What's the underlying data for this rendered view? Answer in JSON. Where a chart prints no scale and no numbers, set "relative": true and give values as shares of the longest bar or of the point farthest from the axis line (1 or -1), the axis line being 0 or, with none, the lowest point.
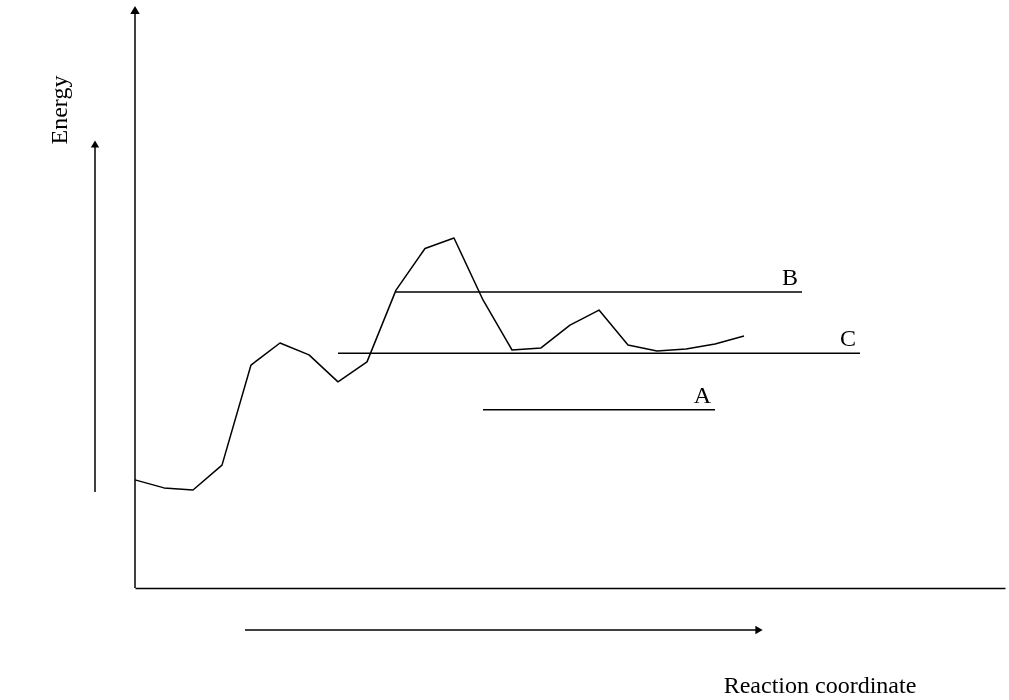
{
  "chart_data": {
    "type": "line",
    "relative": true,
    "xlabel": "Reaction coordinate",
    "ylabel": "Energy",
    "tick_labels": false,
    "grid": false,
    "marker": "none",
    "line_style": "solid",
    "categories": [
      null,
      null,
      null,
      null,
      null,
      null,
      null,
      null,
      null,
      null,
      null,
      null,
      null,
      null,
      null,
      null,
      null,
      null,
      null,
      null,
      null,
      null,
      null,
      null,
      null,
      null,
      null,
      null,
      null,
      null,
      null
    ],
    "series": [
      {
        "color": "#000000",
        "values": [
          0.309,
          0.286,
          0.28,
          0.351,
          0.637,
          0.7,
          0.666,
          0.589,
          0.646,
          0.851,
          0.97,
          1.0,
          0.823,
          0.68,
          0.686,
          0.751,
          0.794,
          0.694,
          0.677,
          0.683,
          0.697,
          0.72,
          null,
          null,
          null,
          null,
          null,
          null,
          null,
          null,
          null
        ]
      },
      {
        "name": "B",
        "color": "#000000",
        "values": [
          null,
          null,
          null,
          null,
          null,
          null,
          null,
          null,
          null,
          0.846,
          0.846,
          0.846,
          0.846,
          0.846,
          0.846,
          0.846,
          0.846,
          0.846,
          0.846,
          0.846,
          0.846,
          0.846,
          0.846,
          0.846,
          null,
          null,
          null,
          null,
          null,
          null,
          null
        ]
      },
      {
        "name": "C",
        "color": "#000000",
        "values": [
          null,
          null,
          null,
          null,
          null,
          null,
          null,
          0.671,
          0.671,
          0.671,
          0.671,
          0.671,
          0.671,
          0.671,
          0.671,
          0.671,
          0.671,
          0.671,
          0.671,
          0.671,
          0.671,
          0.671,
          0.671,
          0.671,
          0.671,
          0.671,
          null,
          null,
          null,
          null,
          null
        ]
      },
      {
        "name": "A",
        "color": "#000000",
        "values": [
          null,
          null,
          null,
          null,
          null,
          null,
          null,
          null,
          null,
          null,
          null,
          null,
          0.509,
          0.509,
          0.509,
          0.509,
          0.509,
          0.509,
          0.509,
          0.509,
          0.509,
          null,
          null,
          null,
          null,
          null,
          null,
          null,
          null,
          null,
          null
        ]
      }
    ]
  }
}
